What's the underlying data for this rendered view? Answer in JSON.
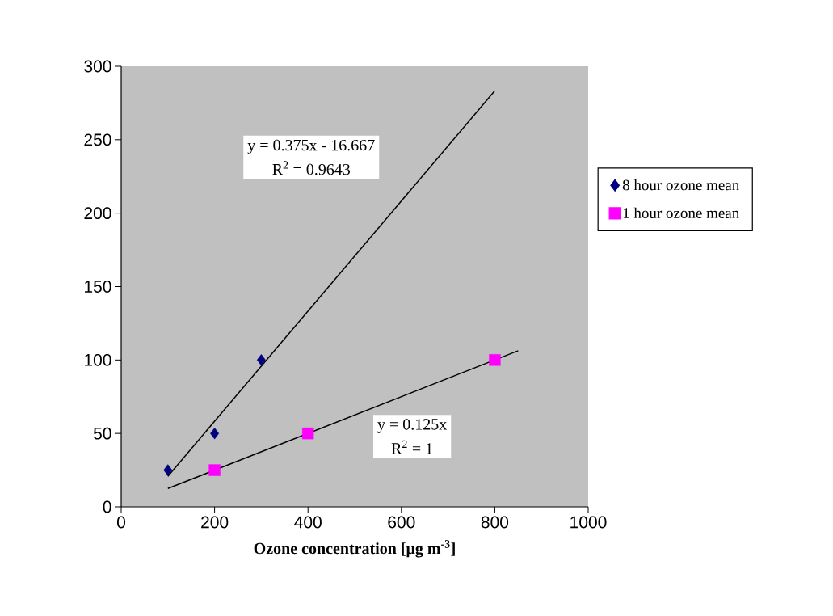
{
  "chart_data": {
    "type": "scatter",
    "xlabel": "Ozone concentration [μg m$^{-3}$]",
    "xlim": [
      0,
      1000
    ],
    "xticks": [
      0,
      200,
      400,
      600,
      800,
      1000
    ],
    "ylim": [
      0,
      300
    ],
    "yticks": [
      0,
      50,
      100,
      150,
      200,
      250,
      300
    ],
    "legend": "right",
    "series": [
      {
        "name": "8 hour ozone mean",
        "marker": "diamond",
        "color": "#000080",
        "x": [
          100,
          200,
          300
        ],
        "values": [
          25,
          50,
          100
        ]
      },
      {
        "name": "1 hour ozone mean",
        "marker": "square",
        "color": "#ff00ff",
        "x": [
          200,
          400,
          800
        ],
        "values": [
          25,
          50,
          100
        ]
      },
      {
        "type": "line",
        "marker": "none",
        "color": "#000000",
        "x": [
          100,
          800
        ],
        "values": [
          20.8,
          283.3
        ]
      },
      {
        "type": "line",
        "marker": "none",
        "color": "#000000",
        "x": [
          100,
          850
        ],
        "values": [
          12.5,
          106.3
        ]
      }
    ],
    "annotations": [
      "y = 0.375x - 16.667",
      "R$^{2}$ = 0.9643",
      "y = 0.125x",
      "R$^{2}$ = 1"
    ]
  }
}
